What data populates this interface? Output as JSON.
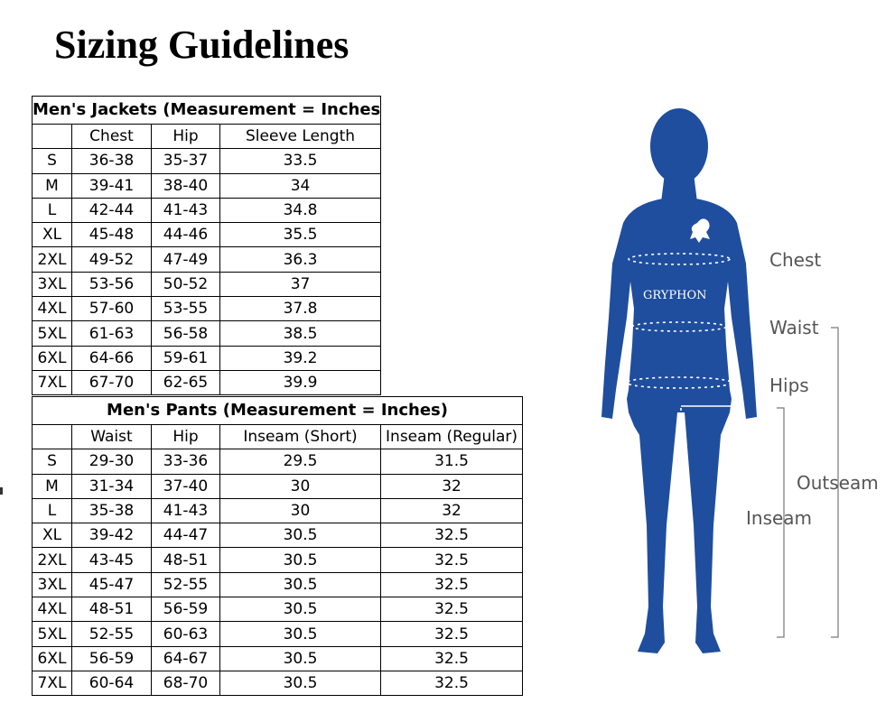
{
  "title": "Sizing Guidelines",
  "jackets": {
    "caption": "Men's Jackets (Measurement = Inches)",
    "columns": [
      "",
      "Chest",
      "Hip",
      "Sleeve Length"
    ],
    "rows": [
      [
        "S",
        "36-38",
        "35-37",
        "33.5"
      ],
      [
        "M",
        "39-41",
        "38-40",
        "34"
      ],
      [
        "L",
        "42-44",
        "41-43",
        "34.8"
      ],
      [
        "XL",
        "45-48",
        "44-46",
        "35.5"
      ],
      [
        "2XL",
        "49-52",
        "47-49",
        "36.3"
      ],
      [
        "3XL",
        "53-56",
        "50-52",
        "37"
      ],
      [
        "4XL",
        "57-60",
        "53-55",
        "37.8"
      ],
      [
        "5XL",
        "61-63",
        "56-58",
        "38.5"
      ],
      [
        "6XL",
        "64-66",
        "59-61",
        "39.2"
      ],
      [
        "7XL",
        "67-70",
        "62-65",
        "39.9"
      ]
    ]
  },
  "pants": {
    "caption": "Men's Pants (Measurement = Inches)",
    "columns": [
      "",
      "Waist",
      "Hip",
      "Inseam (Short)",
      "Inseam (Regular)"
    ],
    "rows": [
      [
        "S",
        "29-30",
        "33-36",
        "29.5",
        "31.5"
      ],
      [
        "M",
        "31-34",
        "37-40",
        "30",
        "32"
      ],
      [
        "L",
        "35-38",
        "41-43",
        "30",
        "32"
      ],
      [
        "XL",
        "39-42",
        "44-47",
        "30.5",
        "32.5"
      ],
      [
        "2XL",
        "43-45",
        "48-51",
        "30.5",
        "32.5"
      ],
      [
        "3XL",
        "45-47",
        "52-55",
        "30.5",
        "32.5"
      ],
      [
        "4XL",
        "48-51",
        "56-59",
        "30.5",
        "32.5"
      ],
      [
        "5XL",
        "52-55",
        "60-63",
        "30.5",
        "32.5"
      ],
      [
        "6XL",
        "56-59",
        "64-67",
        "30.5",
        "32.5"
      ],
      [
        "7XL",
        "60-64",
        "68-70",
        "30.5",
        "32.5"
      ]
    ]
  },
  "figure": {
    "body_color": "#1f4e9e",
    "logo_text": "GRYPHON",
    "labels": {
      "chest": "Chest",
      "waist": "Waist",
      "hips": "Hips",
      "outseam": "Outseam",
      "inseam": "Inseam"
    }
  }
}
